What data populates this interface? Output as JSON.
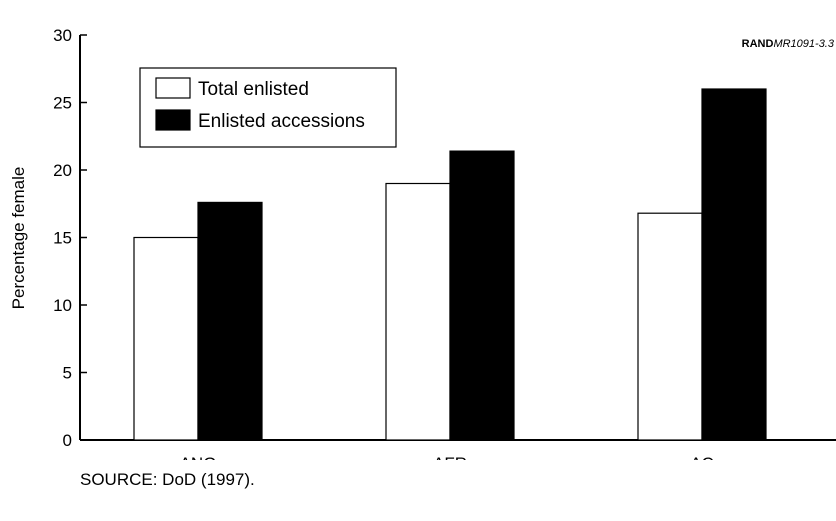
{
  "report_id": {
    "brand": "RAND",
    "code": "MR1091-3.3"
  },
  "source": "SOURCE:  DoD (1997).",
  "chart_data": {
    "type": "bar",
    "title": "",
    "xlabel": "",
    "ylabel": "Percentage female",
    "categories": [
      "ANG",
      "AFR",
      "AC"
    ],
    "series": [
      {
        "name": "Total enlisted",
        "values": [
          15.0,
          19.0,
          16.8
        ],
        "color": "#ffffff"
      },
      {
        "name": "Enlisted accessions",
        "values": [
          17.6,
          21.4,
          26.0
        ],
        "color": "#000000"
      }
    ],
    "ylim": [
      0,
      30
    ],
    "yticks": [
      0,
      5,
      10,
      15,
      20,
      25,
      30
    ],
    "grid": false,
    "legend": "top-left"
  }
}
